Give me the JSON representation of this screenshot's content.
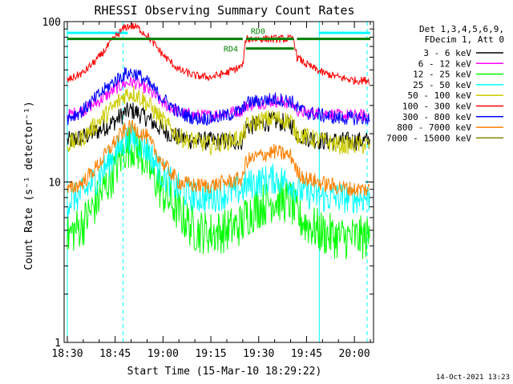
{
  "chart_data": {
    "type": "line",
    "title": "RHESSI Observing Summary Count Rates",
    "xlabel": "Start Time (15-Mar-10 18:29:22)",
    "ylabel": "Count Rate (s⁻¹ detector⁻¹)",
    "y_scale": "log",
    "ylim": [
      1,
      100
    ],
    "xlim_minutes_after_1830": [
      -1,
      96
    ],
    "x_tick_labels": [
      "18:30",
      "18:45",
      "19:00",
      "19:15",
      "19:30",
      "19:45",
      "20:00"
    ],
    "x_tick_minutes": [
      0,
      15,
      30,
      45,
      60,
      75,
      90
    ],
    "y_tick_labels": [
      "1",
      "10",
      "100"
    ],
    "y_tick_values": [
      1,
      10,
      100
    ],
    "legend": {
      "position": "top-right",
      "header_lines": [
        "Det 1,3,4,5,6,9,",
        "FDecim 1, Att 0"
      ]
    },
    "markers": {
      "dashed_vlines_minutes": [
        17.5,
        94
      ],
      "solid_vlines_minutes": [
        0,
        79
      ],
      "cyan_bars": [
        {
          "from": 0,
          "to": 19
        },
        {
          "from": 79,
          "to": 95
        }
      ],
      "green_bars": [
        {
          "label": "",
          "from": 0,
          "to": 55,
          "y": 78
        },
        {
          "label": "RD0",
          "from": 56,
          "to": 71,
          "y": 78
        },
        {
          "label": "RD4",
          "from": 56,
          "to": 71,
          "y": 68
        },
        {
          "label": "",
          "from": 72,
          "to": 95,
          "y": 78
        }
      ]
    },
    "x_minutes": [
      0,
      5,
      10,
      15,
      18,
      20,
      22,
      25,
      30,
      35,
      40,
      45,
      50,
      55,
      56,
      60,
      65,
      70,
      71,
      72,
      75,
      80,
      85,
      90,
      95
    ],
    "series": [
      {
        "name": "3 - 6 keV",
        "color": "#000000",
        "noise": 0.06,
        "values": [
          18,
          19,
          21,
          24,
          27,
          28,
          27,
          25,
          21,
          19,
          18,
          18,
          18,
          18,
          22,
          23,
          24,
          23,
          22,
          20,
          19,
          18,
          18,
          18,
          18
        ]
      },
      {
        "name": "6 - 12 keV",
        "color": "#ff00ff",
        "noise": 0.04,
        "values": [
          26,
          28,
          32,
          38,
          41,
          42,
          41,
          38,
          31,
          27,
          26,
          26,
          27,
          28,
          30,
          31,
          32,
          31,
          30,
          28,
          27,
          27,
          26,
          26,
          26
        ]
      },
      {
        "name": "12 - 25 keV",
        "color": "#00ff00",
        "noise": 0.14,
        "values": [
          4.6,
          5.5,
          8,
          12,
          16,
          17,
          16,
          13,
          8.5,
          6.5,
          5,
          4.8,
          5,
          5.5,
          6.2,
          7,
          7.8,
          7.5,
          6.8,
          6.2,
          5.5,
          4.8,
          4.5,
          4.5,
          4.5
        ]
      },
      {
        "name": "25 - 50 keV",
        "color": "#00ffff",
        "noise": 0.1,
        "values": [
          7.5,
          8.5,
          11,
          15,
          18,
          19,
          18,
          16,
          11,
          9,
          8,
          8,
          8.5,
          9,
          9.5,
          10,
          10.5,
          10,
          9.5,
          9,
          8.5,
          8,
          8,
          8,
          8
        ]
      },
      {
        "name": "50 - 100 keV",
        "color": "#cccc00",
        "noise": 0.06,
        "values": [
          17,
          19,
          24,
          30,
          35,
          36,
          35,
          31,
          24,
          19,
          18,
          17,
          18,
          19,
          22,
          24,
          25,
          24,
          22,
          20,
          19,
          18,
          17,
          17,
          17
        ]
      },
      {
        "name": "100 - 300 keV",
        "color": "#ff0000",
        "noise": 0.025,
        "values": [
          43,
          48,
          60,
          80,
          92,
          94,
          92,
          82,
          62,
          50,
          46,
          45,
          48,
          53,
          78,
          78,
          78,
          78,
          78,
          60,
          54,
          48,
          45,
          43,
          43
        ]
      },
      {
        "name": "300 - 800 keV",
        "color": "#0000ff",
        "noise": 0.045,
        "values": [
          25,
          28,
          35,
          43,
          47,
          48,
          47,
          42,
          33,
          27,
          25,
          25,
          26,
          28,
          31,
          32,
          33,
          32,
          31,
          29,
          27,
          26,
          25,
          25,
          25
        ]
      },
      {
        "name": "800 - 7000 keV",
        "color": "#ff8000",
        "noise": 0.05,
        "values": [
          8.8,
          10,
          13,
          18,
          21,
          22,
          21,
          19,
          13,
          10,
          9.5,
          9.5,
          10,
          10.5,
          13.5,
          14.5,
          15.5,
          14.5,
          13.5,
          11.5,
          10.5,
          9.8,
          9.3,
          9,
          9
        ]
      },
      {
        "name": "7000 - 15000 keV",
        "color": "#808000",
        "noise": 0.0,
        "values": []
      }
    ]
  },
  "footer_timestamp": "14-Oct-2021 13:23"
}
